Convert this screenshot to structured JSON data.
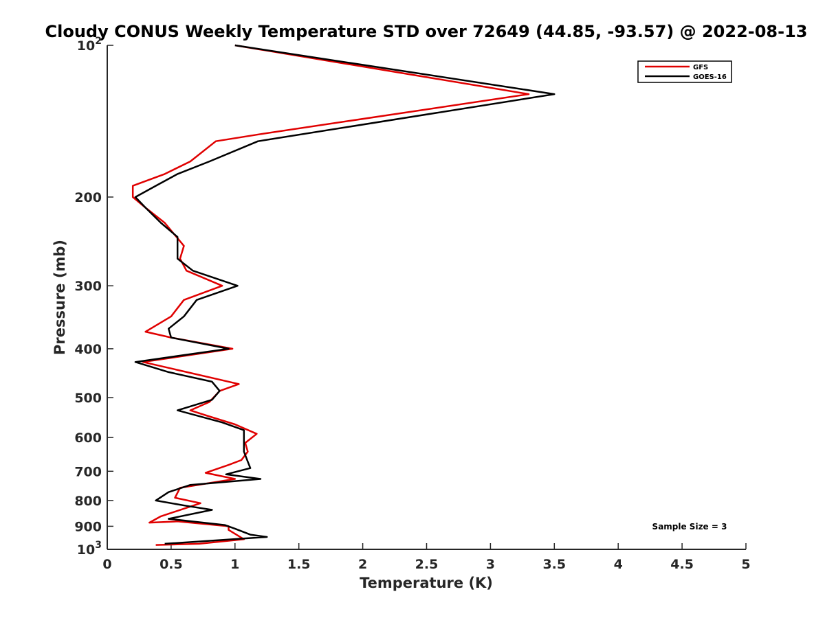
{
  "chart_data": {
    "type": "line",
    "title": "Cloudy CONUS Weekly Temperature STD over 72649 (44.85, -93.57) @ 2022-08-13",
    "xlabel": "Temperature (K)",
    "ylabel": "Pressure (mb)",
    "xlim": [
      0,
      5
    ],
    "ylim": [
      100,
      1000
    ],
    "y_scale": "log",
    "y_reversed": true,
    "grid": false,
    "legend_position": "top-right",
    "x_ticks": [
      "0",
      "0.5",
      "1",
      "1.5",
      "2",
      "2.5",
      "3",
      "3.5",
      "4",
      "4.5",
      "5"
    ],
    "y_ticks": [
      {
        "value": 100,
        "base": "10",
        "exp": "2"
      },
      {
        "value": 200,
        "label": "200"
      },
      {
        "value": 300,
        "label": "300"
      },
      {
        "value": 400,
        "label": "400"
      },
      {
        "value": 500,
        "label": "500"
      },
      {
        "value": 600,
        "label": "600"
      },
      {
        "value": 700,
        "label": "700"
      },
      {
        "value": 800,
        "label": "800"
      },
      {
        "value": 900,
        "label": "900"
      },
      {
        "value": 1000,
        "base": "10",
        "exp": "3"
      }
    ],
    "annotation": "Sample Size = 3",
    "series": [
      {
        "name": "GFS",
        "color": "#e00000",
        "points": [
          [
            1.0,
            100
          ],
          [
            3.3,
            125
          ],
          [
            1.2,
            150
          ],
          [
            0.85,
            155
          ],
          [
            0.65,
            170
          ],
          [
            0.45,
            180
          ],
          [
            0.2,
            190
          ],
          [
            0.2,
            200
          ],
          [
            0.3,
            210
          ],
          [
            0.45,
            225
          ],
          [
            0.6,
            250
          ],
          [
            0.57,
            265
          ],
          [
            0.62,
            280
          ],
          [
            0.9,
            300
          ],
          [
            0.6,
            320
          ],
          [
            0.5,
            345
          ],
          [
            0.3,
            370
          ],
          [
            0.5,
            380
          ],
          [
            0.98,
            400
          ],
          [
            0.28,
            425
          ],
          [
            1.03,
            470
          ],
          [
            0.88,
            485
          ],
          [
            0.8,
            510
          ],
          [
            0.65,
            530
          ],
          [
            0.8,
            545
          ],
          [
            1.0,
            565
          ],
          [
            1.17,
            590
          ],
          [
            1.08,
            615
          ],
          [
            1.1,
            640
          ],
          [
            1.05,
            665
          ],
          [
            0.95,
            680
          ],
          [
            0.77,
            705
          ],
          [
            1.0,
            725
          ],
          [
            0.57,
            755
          ],
          [
            0.53,
            790
          ],
          [
            0.73,
            810
          ],
          [
            0.42,
            860
          ],
          [
            0.33,
            885
          ],
          [
            0.55,
            880
          ],
          [
            0.95,
            900
          ],
          [
            0.95,
            915
          ],
          [
            1.07,
            955
          ],
          [
            0.72,
            975
          ],
          [
            0.38,
            980
          ]
        ]
      },
      {
        "name": "GOES-16",
        "color": "#000000",
        "points": [
          [
            1.0,
            100
          ],
          [
            3.5,
            125
          ],
          [
            1.18,
            155
          ],
          [
            0.8,
            170
          ],
          [
            0.55,
            180
          ],
          [
            0.38,
            190
          ],
          [
            0.22,
            200
          ],
          [
            0.3,
            210
          ],
          [
            0.42,
            225
          ],
          [
            0.55,
            240
          ],
          [
            0.55,
            265
          ],
          [
            0.67,
            280
          ],
          [
            1.02,
            300
          ],
          [
            0.7,
            320
          ],
          [
            0.6,
            345
          ],
          [
            0.48,
            365
          ],
          [
            0.5,
            380
          ],
          [
            0.95,
            400
          ],
          [
            0.22,
            425
          ],
          [
            0.48,
            445
          ],
          [
            0.82,
            465
          ],
          [
            0.88,
            485
          ],
          [
            0.82,
            505
          ],
          [
            0.55,
            530
          ],
          [
            0.9,
            560
          ],
          [
            1.07,
            580
          ],
          [
            1.07,
            640
          ],
          [
            1.1,
            670
          ],
          [
            1.12,
            690
          ],
          [
            0.93,
            710
          ],
          [
            1.2,
            725
          ],
          [
            0.65,
            745
          ],
          [
            0.48,
            770
          ],
          [
            0.38,
            800
          ],
          [
            0.62,
            820
          ],
          [
            0.82,
            835
          ],
          [
            0.48,
            870
          ],
          [
            0.92,
            895
          ],
          [
            1.0,
            910
          ],
          [
            1.12,
            935
          ],
          [
            1.25,
            945
          ],
          [
            0.45,
            975
          ]
        ]
      }
    ]
  }
}
